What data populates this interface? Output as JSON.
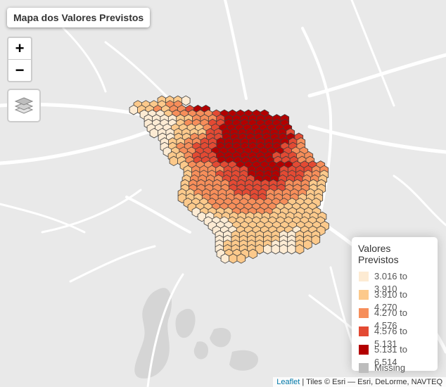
{
  "title": "Mapa dos Valores Previstos",
  "zoom": {
    "in_label": "+",
    "out_label": "−"
  },
  "legend": {
    "title": "Valores Previstos",
    "items": [
      {
        "label": "3.016 to 3.910",
        "color": "#fdebd3"
      },
      {
        "label": "3.910 to 4.270",
        "color": "#fcc98b"
      },
      {
        "label": "4.270 to 4.576",
        "color": "#f68e5a"
      },
      {
        "label": "4.576 to 5.131",
        "color": "#e34a33"
      },
      {
        "label": "5.131 to 6.514",
        "color": "#b30000"
      },
      {
        "label": "Missing",
        "color": "#bdbdbd"
      }
    ]
  },
  "attribution": {
    "link": "Leaflet",
    "text": " | Tiles © Esri — Esri, DeLorme, NAVTEQ"
  },
  "colors": {
    "basemap": "#e9e9e9",
    "roads": "#ffffff",
    "water": "#d5d5d5",
    "hex_stroke": "#3c3c3c"
  },
  "hexagon_classes": [
    "1110",
    "111122",
    "0112122344",
    "0001222223444444",
    "000011222344444444",
    "000012223344444444",
    "000111123444444444",
    "000111133444444443",
    "001122334444444443",
    "011223344444444432",
    "012233344444444332",
    "012233444444444322",
    "112333444444433322",
    "112333444444433322",
    "122233344444443332",
    "122223334444333322",
    "122233334444333221",
    "122223333444333221",
    "122222333333322211",
    "122222333333322211",
    "112222233332222211",
    "111222222332222111",
    "11122222222221111",
    "1112222222211111",
    "0111122222111111",
    "0011111111111111",
    "000111111111111",
    "000111111111111",
    "00011111110111",
    "0011111100111",
    "0011111100111",
    "011111100011",
    "01111100001",
    "01111",
    "011"
  ]
}
